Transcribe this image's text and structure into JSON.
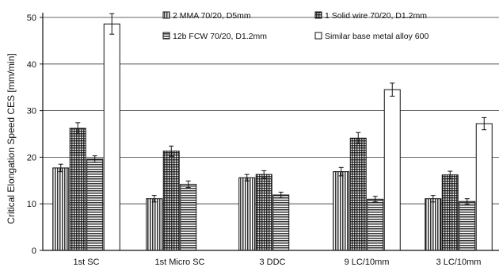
{
  "chart_data": {
    "type": "bar",
    "title": "",
    "xlabel": "",
    "ylabel": "Critical Elongation Speed CES [mm/min]",
    "ylim": [
      0,
      50
    ],
    "yticks": [
      0,
      10,
      20,
      30,
      40,
      50
    ],
    "grid": true,
    "legend_position": "top",
    "categories": [
      "1st SC",
      "1st Micro SC",
      "3 DDC",
      "9 LC/10mm",
      "3 LC/10mm"
    ],
    "series": [
      {
        "name": "2 MMA 70/20, D5mm",
        "pattern": "vertical-stripes",
        "values": [
          17.7,
          11.1,
          15.6,
          16.9,
          11.1
        ],
        "errors": [
          0.8,
          0.7,
          0.7,
          0.9,
          0.7
        ]
      },
      {
        "name": "1 Solid wire 70/20, D1.2mm",
        "pattern": "crosshatch",
        "values": [
          26.2,
          21.3,
          16.3,
          24.1,
          16.2
        ],
        "errors": [
          1.2,
          1.1,
          0.8,
          1.2,
          0.8
        ]
      },
      {
        "name": "12b FCW 70/20, D1.2mm",
        "pattern": "horizontal-stripes",
        "values": [
          19.6,
          14.2,
          11.9,
          11.0,
          10.5
        ],
        "errors": [
          0.7,
          0.7,
          0.6,
          0.6,
          0.6
        ]
      },
      {
        "name": "Similar base metal alloy 600",
        "pattern": "white",
        "values": [
          48.6,
          null,
          null,
          34.5,
          27.2
        ],
        "errors": [
          2.2,
          null,
          null,
          1.4,
          1.3
        ]
      }
    ]
  }
}
